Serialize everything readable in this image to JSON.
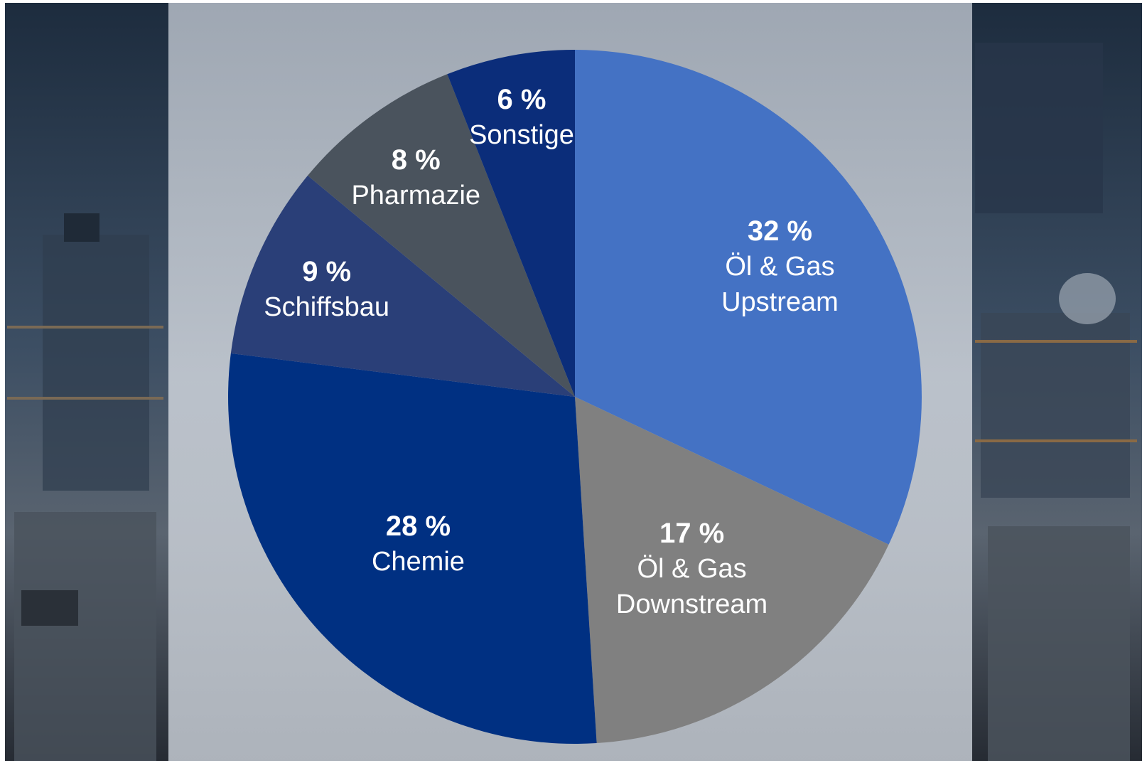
{
  "colors": {
    "photo_dark": "#1b2330",
    "photo_mid": "#3b4a5c",
    "overlay_light": "#c9ced6"
  },
  "chart_data": {
    "type": "pie",
    "title": "",
    "start_angle_deg": 0,
    "direction": "clockwise",
    "legend": "none",
    "slices": [
      {
        "label_lines": [
          "Öl & Gas",
          "Upstream"
        ],
        "pct_label": "32 %",
        "value": 32,
        "color": "#4472c4"
      },
      {
        "label_lines": [
          "Öl & Gas",
          "Downstream"
        ],
        "pct_label": "17 %",
        "value": 17,
        "color": "#808080"
      },
      {
        "label_lines": [
          "Chemie"
        ],
        "pct_label": "28 %",
        "value": 28,
        "color": "#003082"
      },
      {
        "label_lines": [
          "Schiffsbau"
        ],
        "pct_label": "9 %",
        "value": 9,
        "color": "#2a3f78"
      },
      {
        "label_lines": [
          "Pharmazie"
        ],
        "pct_label": "8 %",
        "value": 8,
        "color": "#4a535d"
      },
      {
        "label_lines": [
          "Sonstige"
        ],
        "pct_label": "6 %",
        "value": 6,
        "color": "#0b2d7a"
      }
    ]
  }
}
